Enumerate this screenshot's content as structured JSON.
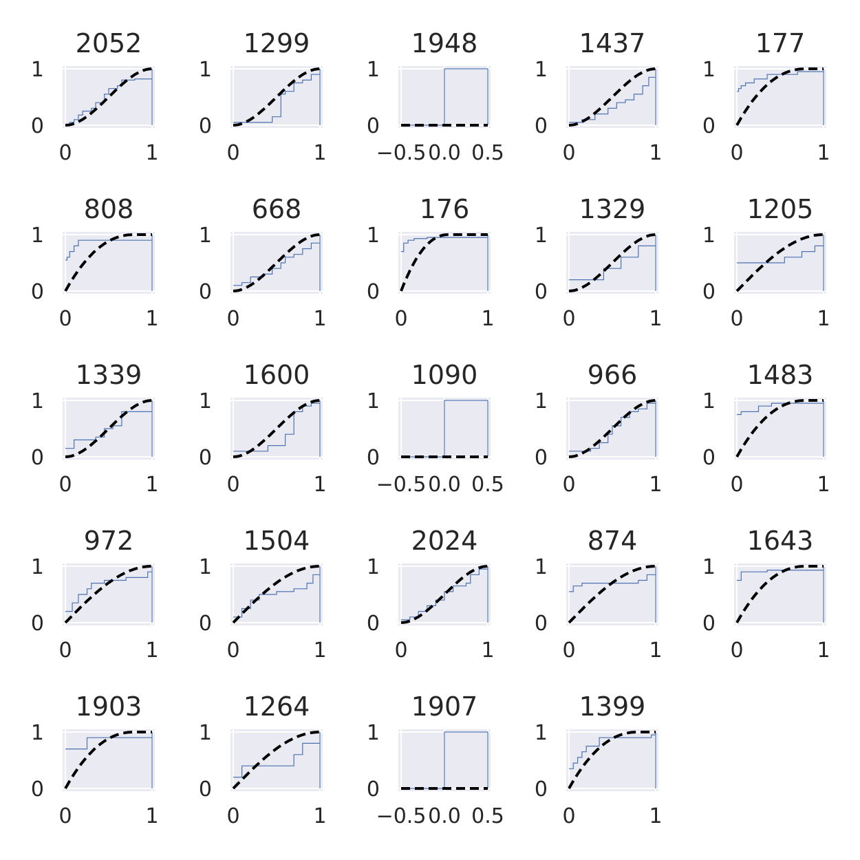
{
  "chart_data": [
    {
      "type": "line",
      "title": "2052",
      "xlim": [
        0,
        1
      ],
      "ylim": [
        0,
        1
      ],
      "xticks": [
        "0",
        "1"
      ],
      "yticks": [
        "0",
        "1"
      ],
      "grid": true,
      "series": [
        {
          "kind": "ecdf",
          "color": "#4c72b0",
          "x": [
            0,
            0.05,
            0.1,
            0.15,
            0.2,
            0.3,
            0.35,
            0.45,
            0.5,
            0.6,
            0.65,
            0.8,
            0.9,
            1
          ],
          "y": [
            0,
            0.05,
            0.1,
            0.18,
            0.25,
            0.3,
            0.4,
            0.55,
            0.65,
            0.7,
            0.8,
            0.82,
            0.82,
            1
          ]
        },
        {
          "kind": "reference",
          "style": "dashed",
          "color": "#000000",
          "shape": "smoothstep"
        }
      ]
    },
    {
      "type": "line",
      "title": "1299",
      "xlim": [
        0,
        1
      ],
      "ylim": [
        0,
        1
      ],
      "xticks": [
        "0",
        "1"
      ],
      "yticks": [
        "0",
        "1"
      ],
      "grid": true,
      "series": [
        {
          "kind": "ecdf",
          "color": "#4c72b0",
          "x": [
            0,
            0.2,
            0.45,
            0.55,
            0.6,
            0.7,
            0.8,
            0.9,
            1
          ],
          "y": [
            0.05,
            0.05,
            0.15,
            0.55,
            0.6,
            0.75,
            0.8,
            0.9,
            1
          ]
        },
        {
          "kind": "reference",
          "style": "dashed",
          "color": "#000000",
          "shape": "smoothstep"
        }
      ]
    },
    {
      "type": "line",
      "title": "1948",
      "xlim": [
        -0.5,
        0.5
      ],
      "ylim": [
        0,
        1
      ],
      "xticks": [
        "−0.5",
        "0.0",
        "0.5"
      ],
      "yticks": [
        "0",
        "1"
      ],
      "grid": true,
      "series": [
        {
          "kind": "ecdf",
          "color": "#4c72b0",
          "x": [
            -0.5,
            0,
            0.5
          ],
          "y": [
            0,
            1,
            1
          ]
        },
        {
          "kind": "reference",
          "style": "dashed",
          "color": "#000000",
          "shape": "zero"
        }
      ]
    },
    {
      "type": "line",
      "title": "1437",
      "xlim": [
        0,
        1
      ],
      "ylim": [
        0,
        1
      ],
      "xticks": [
        "0",
        "1"
      ],
      "yticks": [
        "0",
        "1"
      ],
      "grid": true,
      "series": [
        {
          "kind": "ecdf",
          "color": "#4c72b0",
          "x": [
            0,
            0.15,
            0.3,
            0.45,
            0.55,
            0.65,
            0.75,
            0.85,
            0.92,
            1
          ],
          "y": [
            0.05,
            0.1,
            0.2,
            0.3,
            0.4,
            0.45,
            0.55,
            0.7,
            0.85,
            1
          ]
        },
        {
          "kind": "reference",
          "style": "dashed",
          "color": "#000000",
          "shape": "smoothstep"
        }
      ]
    },
    {
      "type": "line",
      "title": "177",
      "xlim": [
        0,
        1
      ],
      "ylim": [
        0,
        1
      ],
      "xticks": [
        "0",
        "1"
      ],
      "yticks": [
        "0",
        "1"
      ],
      "grid": true,
      "series": [
        {
          "kind": "ecdf",
          "color": "#4c72b0",
          "x": [
            0,
            0.02,
            0.05,
            0.1,
            0.2,
            0.35,
            0.7,
            1
          ],
          "y": [
            0.6,
            0.65,
            0.7,
            0.75,
            0.82,
            0.9,
            0.95,
            1
          ]
        },
        {
          "kind": "reference",
          "style": "dashed",
          "color": "#000000",
          "shape": "concave"
        }
      ]
    },
    {
      "type": "line",
      "title": "808",
      "xlim": [
        0,
        1
      ],
      "ylim": [
        0,
        1
      ],
      "xticks": [
        "0",
        "1"
      ],
      "yticks": [
        "0",
        "1"
      ],
      "grid": true,
      "series": [
        {
          "kind": "ecdf",
          "color": "#4c72b0",
          "x": [
            0,
            0.02,
            0.05,
            0.1,
            0.15,
            1
          ],
          "y": [
            0.55,
            0.6,
            0.7,
            0.8,
            0.9,
            1
          ]
        },
        {
          "kind": "reference",
          "style": "dashed",
          "color": "#000000",
          "shape": "concave"
        }
      ]
    },
    {
      "type": "line",
      "title": "668",
      "xlim": [
        0,
        1
      ],
      "ylim": [
        0,
        1
      ],
      "xticks": [
        "0",
        "1"
      ],
      "yticks": [
        "0",
        "1"
      ],
      "grid": true,
      "series": [
        {
          "kind": "ecdf",
          "color": "#4c72b0",
          "x": [
            0,
            0.1,
            0.2,
            0.35,
            0.45,
            0.55,
            0.6,
            0.7,
            0.8,
            0.9,
            1
          ],
          "y": [
            0.1,
            0.15,
            0.25,
            0.3,
            0.4,
            0.5,
            0.6,
            0.65,
            0.75,
            0.85,
            1
          ]
        },
        {
          "kind": "reference",
          "style": "dashed",
          "color": "#000000",
          "shape": "smoothstep"
        }
      ]
    },
    {
      "type": "line",
      "title": "176",
      "xlim": [
        0,
        1
      ],
      "ylim": [
        0,
        1
      ],
      "xticks": [
        "0",
        "1"
      ],
      "yticks": [
        "0",
        "1"
      ],
      "grid": true,
      "series": [
        {
          "kind": "ecdf",
          "color": "#4c72b0",
          "x": [
            0,
            0.03,
            0.08,
            0.15,
            0.3,
            1
          ],
          "y": [
            0.7,
            0.85,
            0.9,
            0.93,
            0.95,
            1
          ]
        },
        {
          "kind": "reference",
          "style": "dashed",
          "color": "#000000",
          "shape": "steep"
        }
      ]
    },
    {
      "type": "line",
      "title": "1329",
      "xlim": [
        0,
        1
      ],
      "ylim": [
        0,
        1
      ],
      "xticks": [
        "0",
        "1"
      ],
      "yticks": [
        "0",
        "1"
      ],
      "grid": true,
      "series": [
        {
          "kind": "ecdf",
          "color": "#4c72b0",
          "x": [
            0,
            0.2,
            0.4,
            0.6,
            0.8,
            1
          ],
          "y": [
            0.2,
            0.2,
            0.4,
            0.6,
            0.8,
            1
          ]
        },
        {
          "kind": "reference",
          "style": "dashed",
          "color": "#000000",
          "shape": "smoothstep"
        }
      ]
    },
    {
      "type": "line",
      "title": "1205",
      "xlim": [
        0,
        1
      ],
      "ylim": [
        0,
        1
      ],
      "xticks": [
        "0",
        "1"
      ],
      "yticks": [
        "0",
        "1"
      ],
      "grid": true,
      "series": [
        {
          "kind": "ecdf",
          "color": "#4c72b0",
          "x": [
            0,
            0.4,
            0.55,
            0.75,
            0.9,
            1
          ],
          "y": [
            0.5,
            0.5,
            0.6,
            0.7,
            0.8,
            1
          ]
        },
        {
          "kind": "reference",
          "style": "dashed",
          "color": "#000000",
          "shape": "sine"
        }
      ]
    },
    {
      "type": "line",
      "title": "1339",
      "xlim": [
        0,
        1
      ],
      "ylim": [
        0,
        1
      ],
      "xticks": [
        "0",
        "1"
      ],
      "yticks": [
        "0",
        "1"
      ],
      "grid": true,
      "series": [
        {
          "kind": "ecdf",
          "color": "#4c72b0",
          "x": [
            0,
            0.1,
            0.35,
            0.45,
            0.55,
            0.65,
            0.8,
            1
          ],
          "y": [
            0.15,
            0.3,
            0.35,
            0.5,
            0.55,
            0.8,
            0.8,
            1
          ]
        },
        {
          "kind": "reference",
          "style": "dashed",
          "color": "#000000",
          "shape": "smoothstep"
        }
      ]
    },
    {
      "type": "line",
      "title": "1600",
      "xlim": [
        0,
        1
      ],
      "ylim": [
        0,
        1
      ],
      "xticks": [
        "0",
        "1"
      ],
      "yticks": [
        "0",
        "1"
      ],
      "grid": true,
      "series": [
        {
          "kind": "ecdf",
          "color": "#4c72b0",
          "x": [
            0,
            0.2,
            0.4,
            0.6,
            0.7,
            0.8,
            0.9,
            1
          ],
          "y": [
            0.1,
            0.1,
            0.2,
            0.4,
            0.8,
            0.9,
            0.95,
            1
          ]
        },
        {
          "kind": "reference",
          "style": "dashed",
          "color": "#000000",
          "shape": "smoothstep"
        }
      ]
    },
    {
      "type": "line",
      "title": "1090",
      "xlim": [
        -0.5,
        0.5
      ],
      "ylim": [
        0,
        1
      ],
      "xticks": [
        "−0.5",
        "0.0",
        "0.5"
      ],
      "yticks": [
        "0",
        "1"
      ],
      "grid": true,
      "series": [
        {
          "kind": "ecdf",
          "color": "#4c72b0",
          "x": [
            -0.5,
            0,
            0.5
          ],
          "y": [
            0,
            1,
            1
          ]
        },
        {
          "kind": "reference",
          "style": "dashed",
          "color": "#000000",
          "shape": "zero"
        }
      ]
    },
    {
      "type": "line",
      "title": "966",
      "xlim": [
        0,
        1
      ],
      "ylim": [
        0,
        1
      ],
      "xticks": [
        "0",
        "1"
      ],
      "yticks": [
        "0",
        "1"
      ],
      "grid": true,
      "series": [
        {
          "kind": "ecdf",
          "color": "#4c72b0",
          "x": [
            0,
            0.25,
            0.35,
            0.45,
            0.5,
            0.6,
            0.7,
            0.8,
            0.9,
            1
          ],
          "y": [
            0.1,
            0.15,
            0.25,
            0.4,
            0.55,
            0.7,
            0.8,
            0.85,
            0.95,
            1
          ]
        },
        {
          "kind": "reference",
          "style": "dashed",
          "color": "#000000",
          "shape": "smoothstep"
        }
      ]
    },
    {
      "type": "line",
      "title": "1483",
      "xlim": [
        0,
        1
      ],
      "ylim": [
        0,
        1
      ],
      "xticks": [
        "0",
        "1"
      ],
      "yticks": [
        "0",
        "1"
      ],
      "grid": true,
      "series": [
        {
          "kind": "ecdf",
          "color": "#4c72b0",
          "x": [
            0,
            0.05,
            0.25,
            0.4,
            1
          ],
          "y": [
            0.75,
            0.8,
            0.9,
            0.95,
            1
          ]
        },
        {
          "kind": "reference",
          "style": "dashed",
          "color": "#000000",
          "shape": "concave"
        }
      ]
    },
    {
      "type": "line",
      "title": "972",
      "xlim": [
        0,
        1
      ],
      "ylim": [
        0,
        1
      ],
      "xticks": [
        "0",
        "1"
      ],
      "yticks": [
        "0",
        "1"
      ],
      "grid": true,
      "series": [
        {
          "kind": "ecdf",
          "color": "#4c72b0",
          "x": [
            0,
            0.08,
            0.15,
            0.25,
            0.3,
            0.45,
            0.7,
            0.95,
            1
          ],
          "y": [
            0.2,
            0.35,
            0.5,
            0.6,
            0.7,
            0.75,
            0.8,
            0.9,
            1
          ]
        },
        {
          "kind": "reference",
          "style": "dashed",
          "color": "#000000",
          "shape": "sine"
        }
      ]
    },
    {
      "type": "line",
      "title": "1504",
      "xlim": [
        0,
        1
      ],
      "ylim": [
        0,
        1
      ],
      "xticks": [
        "0",
        "1"
      ],
      "yticks": [
        "0",
        "1"
      ],
      "grid": true,
      "series": [
        {
          "kind": "ecdf",
          "color": "#4c72b0",
          "x": [
            0,
            0.1,
            0.2,
            0.3,
            0.5,
            0.7,
            0.85,
            0.92,
            1
          ],
          "y": [
            0.1,
            0.25,
            0.4,
            0.5,
            0.55,
            0.6,
            0.7,
            0.85,
            1
          ]
        },
        {
          "kind": "reference",
          "style": "dashed",
          "color": "#000000",
          "shape": "sine"
        }
      ]
    },
    {
      "type": "line",
      "title": "2024",
      "xlim": [
        0,
        1
      ],
      "ylim": [
        0,
        1
      ],
      "xticks": [
        "0",
        "1"
      ],
      "yticks": [
        "0",
        "1"
      ],
      "grid": true,
      "series": [
        {
          "kind": "ecdf",
          "color": "#4c72b0",
          "x": [
            0,
            0.1,
            0.2,
            0.3,
            0.4,
            0.5,
            0.6,
            0.75,
            0.8,
            0.9,
            1
          ],
          "y": [
            0.05,
            0.1,
            0.2,
            0.3,
            0.4,
            0.55,
            0.65,
            0.7,
            0.85,
            0.95,
            1
          ]
        },
        {
          "kind": "reference",
          "style": "dashed",
          "color": "#000000",
          "shape": "smoothstep"
        }
      ]
    },
    {
      "type": "line",
      "title": "874",
      "xlim": [
        0,
        1
      ],
      "ylim": [
        0,
        1
      ],
      "xticks": [
        "0",
        "1"
      ],
      "yticks": [
        "0",
        "1"
      ],
      "grid": true,
      "series": [
        {
          "kind": "ecdf",
          "color": "#4c72b0",
          "x": [
            0,
            0.05,
            0.15,
            0.5,
            0.8,
            0.9,
            1
          ],
          "y": [
            0.55,
            0.65,
            0.7,
            0.7,
            0.75,
            0.85,
            1
          ]
        },
        {
          "kind": "reference",
          "style": "dashed",
          "color": "#000000",
          "shape": "sine"
        }
      ]
    },
    {
      "type": "line",
      "title": "1643",
      "xlim": [
        0,
        1
      ],
      "ylim": [
        0,
        1
      ],
      "xticks": [
        "0",
        "1"
      ],
      "yticks": [
        "0",
        "1"
      ],
      "grid": true,
      "series": [
        {
          "kind": "ecdf",
          "color": "#4c72b0",
          "x": [
            0,
            0.05,
            0.35,
            1
          ],
          "y": [
            0.75,
            0.9,
            0.93,
            1
          ]
        },
        {
          "kind": "reference",
          "style": "dashed",
          "color": "#000000",
          "shape": "concave"
        }
      ]
    },
    {
      "type": "line",
      "title": "1903",
      "xlim": [
        0,
        1
      ],
      "ylim": [
        0,
        1
      ],
      "xticks": [
        "0",
        "1"
      ],
      "yticks": [
        "0",
        "1"
      ],
      "grid": true,
      "series": [
        {
          "kind": "ecdf",
          "color": "#4c72b0",
          "x": [
            0,
            0.25,
            0.45,
            1
          ],
          "y": [
            0.7,
            0.9,
            0.9,
            1
          ]
        },
        {
          "kind": "reference",
          "style": "dashed",
          "color": "#000000",
          "shape": "concave"
        }
      ]
    },
    {
      "type": "line",
      "title": "1264",
      "xlim": [
        0,
        1
      ],
      "ylim": [
        0,
        1
      ],
      "xticks": [
        "0",
        "1"
      ],
      "yticks": [
        "0",
        "1"
      ],
      "grid": true,
      "series": [
        {
          "kind": "ecdf",
          "color": "#4c72b0",
          "x": [
            0,
            0.1,
            0.4,
            0.7,
            0.8,
            0.9,
            1
          ],
          "y": [
            0.2,
            0.4,
            0.4,
            0.6,
            0.8,
            0.8,
            1
          ]
        },
        {
          "kind": "reference",
          "style": "dashed",
          "color": "#000000",
          "shape": "sine"
        }
      ]
    },
    {
      "type": "line",
      "title": "1907",
      "xlim": [
        -0.5,
        0.5
      ],
      "ylim": [
        0,
        1
      ],
      "xticks": [
        "−0.5",
        "0.0",
        "0.5"
      ],
      "yticks": [
        "0",
        "1"
      ],
      "grid": true,
      "series": [
        {
          "kind": "ecdf",
          "color": "#4c72b0",
          "x": [
            -0.5,
            0,
            0.5
          ],
          "y": [
            0,
            1,
            1
          ]
        },
        {
          "kind": "reference",
          "style": "dashed",
          "color": "#000000",
          "shape": "zero"
        }
      ]
    },
    {
      "type": "line",
      "title": "1399",
      "xlim": [
        0,
        1
      ],
      "ylim": [
        0,
        1
      ],
      "xticks": [
        "0",
        "1"
      ],
      "yticks": [
        "0",
        "1"
      ],
      "grid": true,
      "series": [
        {
          "kind": "ecdf",
          "color": "#4c72b0",
          "x": [
            0,
            0.05,
            0.1,
            0.15,
            0.2,
            0.35,
            0.95,
            1
          ],
          "y": [
            0.35,
            0.45,
            0.55,
            0.65,
            0.75,
            0.9,
            0.95,
            1
          ]
        },
        {
          "kind": "reference",
          "style": "dashed",
          "color": "#000000",
          "shape": "concave"
        }
      ]
    }
  ]
}
